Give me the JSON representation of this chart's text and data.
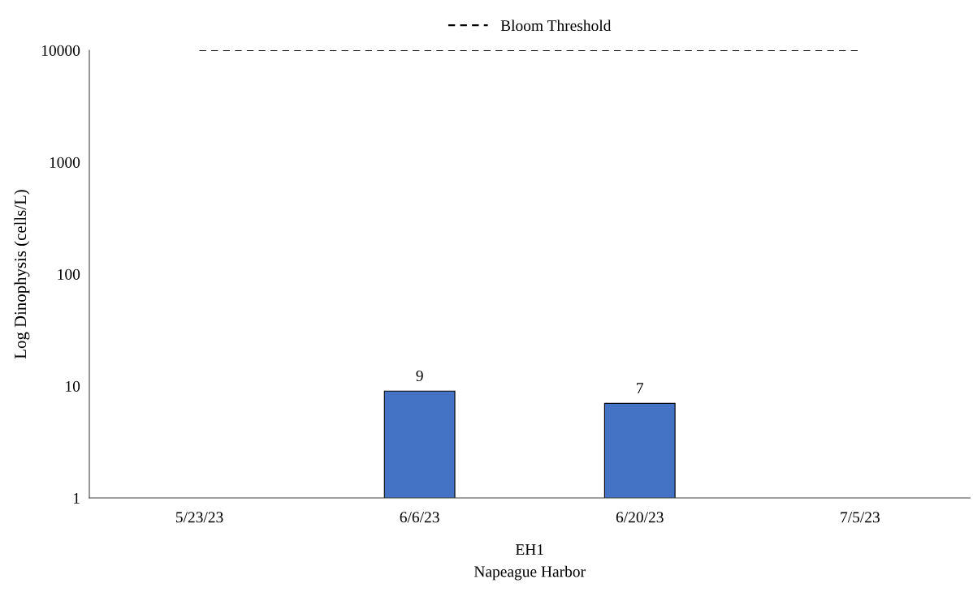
{
  "chart_data": {
    "type": "bar",
    "categories": [
      "5/23/23",
      "6/6/23",
      "6/20/23",
      "7/5/23"
    ],
    "series": [
      {
        "color": "#4472c4",
        "values": [
          null,
          9,
          7,
          null
        ],
        "value_labels": [
          null,
          "9",
          "7",
          null
        ]
      },
      {
        "type": "line",
        "name": "Bloom Threshold",
        "color": "#000000",
        "line_style": "dashed",
        "values": [
          10000,
          10000,
          10000,
          10000
        ]
      }
    ],
    "ylabel": "Log Dinophysis (cells/L)",
    "xlabel": "EH1",
    "annotations": [
      "Napeague Harbor"
    ],
    "log": true,
    "ylim": [
      1,
      10000
    ],
    "yticks": [
      1,
      10,
      100,
      1000,
      10000
    ],
    "legend": "top",
    "grid": false,
    "marker": "none"
  }
}
